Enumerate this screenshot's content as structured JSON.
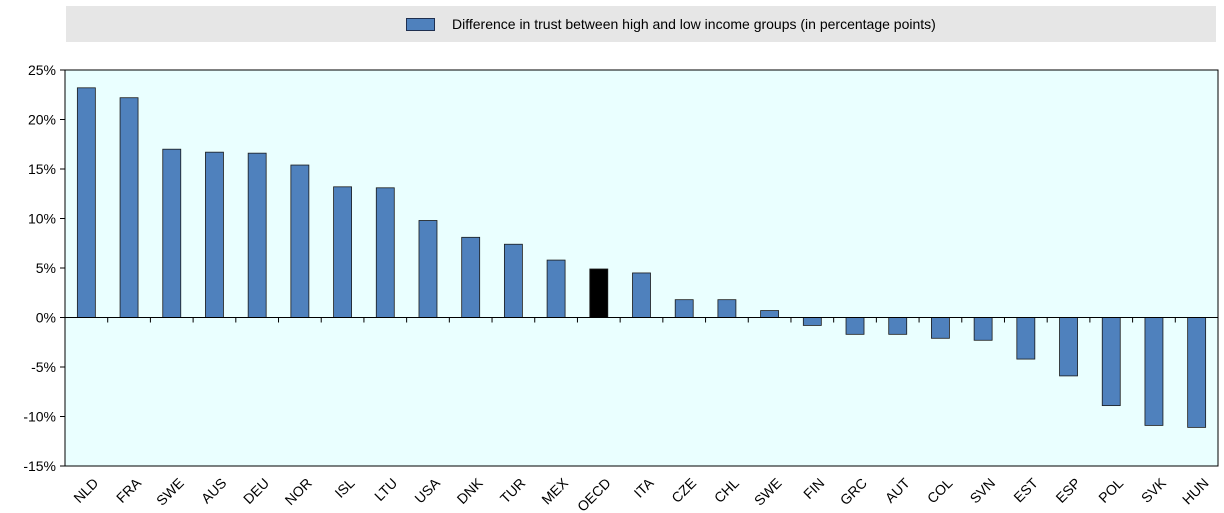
{
  "legend": {
    "label": "Difference in trust between high and low income groups (in percentage points)"
  },
  "colors": {
    "bar": "#4f81bd",
    "highlight": "#000000",
    "plot_background": "#eaffff"
  },
  "chart_data": {
    "type": "bar",
    "categories": [
      "NLD",
      "FRA",
      "SWE",
      "AUS",
      "DEU",
      "NOR",
      "ISL",
      "LTU",
      "USA",
      "DNK",
      "TUR",
      "MEX",
      "OECD",
      "ITA",
      "CZE",
      "CHL",
      "SWE",
      "FIN",
      "GRC",
      "AUT",
      "COL",
      "SVN",
      "EST",
      "ESP",
      "POL",
      "SVK",
      "HUN"
    ],
    "series": [
      {
        "name": "Difference in trust between high and low income groups (in percentage points)",
        "values": [
          23.2,
          22.2,
          17.0,
          16.7,
          16.6,
          15.4,
          13.2,
          13.1,
          9.8,
          8.1,
          7.4,
          5.8,
          4.9,
          4.5,
          1.8,
          1.8,
          0.7,
          -0.8,
          -1.7,
          -1.7,
          -2.1,
          -2.3,
          -4.2,
          -5.9,
          -8.9,
          -10.9,
          -11.1
        ]
      }
    ],
    "highlight_category": "OECD",
    "ylim": [
      -15,
      25
    ],
    "yticks": [
      -15,
      -10,
      -5,
      0,
      5,
      10,
      15,
      20,
      25
    ],
    "ytick_labels": [
      "-15%",
      "-10%",
      "-5%",
      "0%",
      "5%",
      "10%",
      "15%",
      "20%",
      "25%"
    ],
    "legend_position": "top",
    "grid": false
  }
}
